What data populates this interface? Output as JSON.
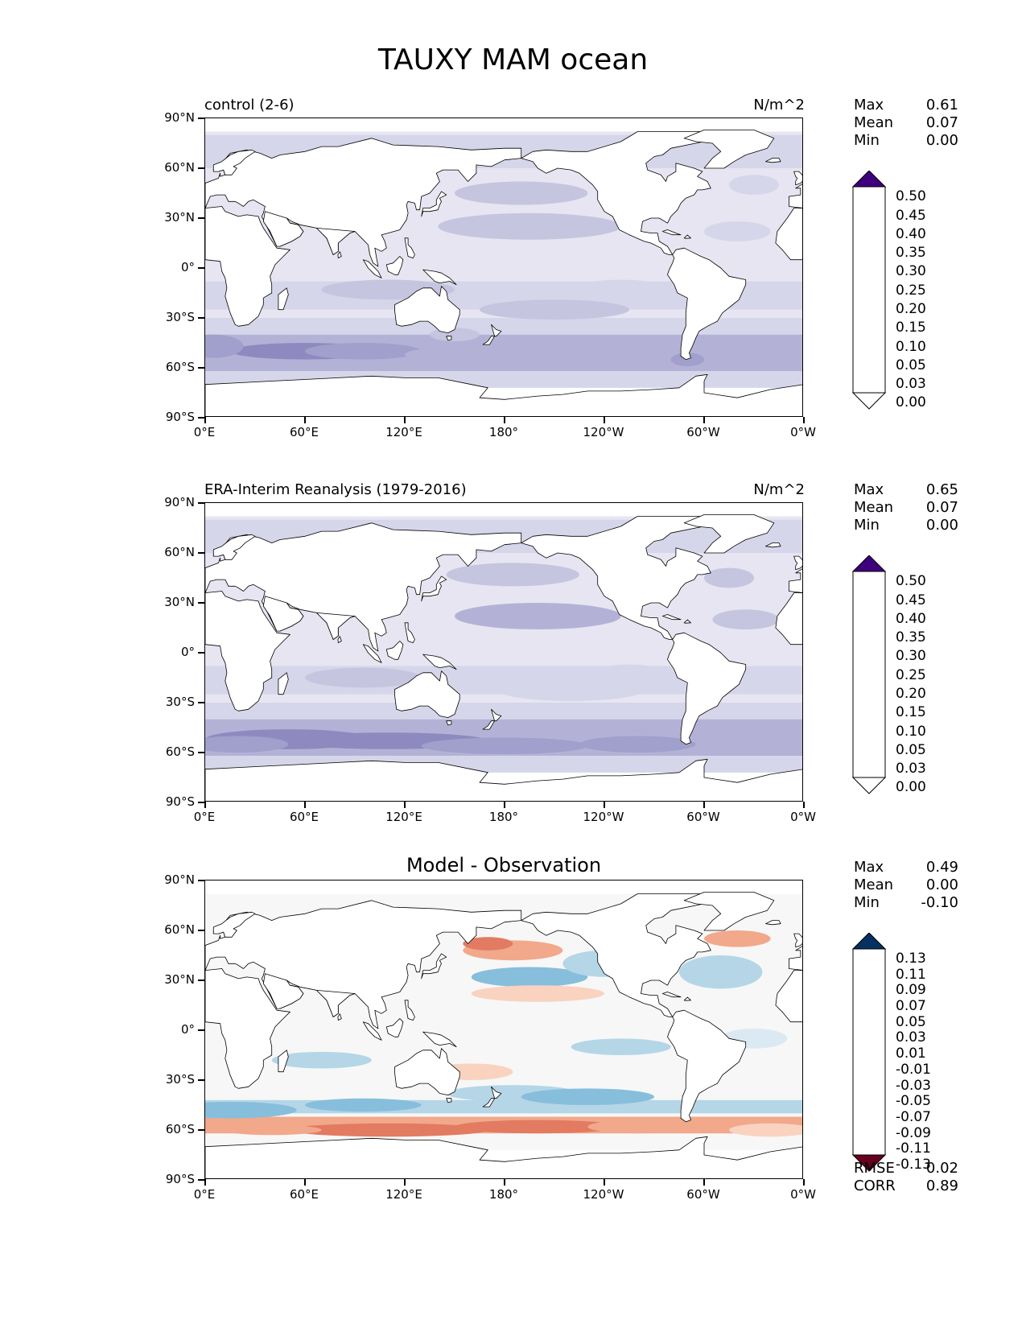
{
  "title": "TAUXY MAM ocean",
  "colors": {
    "purple_scale": [
      "#ffffff",
      "#f4f3f8",
      "#e6e5f1",
      "#d6d6ea",
      "#c5c5e0",
      "#b3b2d6",
      "#a19fcb",
      "#8e89bf",
      "#7a70b1",
      "#6b5aa5",
      "#5c3f97",
      "#4e2288",
      "#3f007d"
    ],
    "diff_scale": [
      "#67001f",
      "#8e0c25",
      "#b8202f",
      "#d1473e",
      "#e27b62",
      "#f2a88a",
      "#f9d3c0",
      "#f7f7f7",
      "#dbeaf2",
      "#b4d6e7",
      "#87bedc",
      "#5199c7",
      "#2f79b5",
      "#185fa2",
      "#053061"
    ],
    "land": "#ffffff",
    "coast": "#000000"
  },
  "axes": {
    "yticks": [
      "90°N",
      "60°N",
      "30°N",
      "0°",
      "30°S",
      "60°S",
      "90°S"
    ],
    "xticks": [
      "0°E",
      "60°E",
      "120°E",
      "180°",
      "120°W",
      "60°W",
      "0°W"
    ]
  },
  "panels": [
    {
      "id": "control",
      "title_left": "control (2-6)",
      "title_right": "N/m^2",
      "stats": [
        {
          "label": "Max",
          "value": "0.61"
        },
        {
          "label": "Mean",
          "value": "0.07"
        },
        {
          "label": "Min",
          "value": "0.00"
        }
      ],
      "colorbar_labels": [
        "0.50",
        "0.45",
        "0.40",
        "0.35",
        "0.30",
        "0.25",
        "0.20",
        "0.15",
        "0.10",
        "0.05",
        "0.03",
        "0.00"
      ]
    },
    {
      "id": "era",
      "title_left": "ERA-Interim Reanalysis (1979-2016)",
      "title_right": "N/m^2",
      "stats": [
        {
          "label": "Max",
          "value": "0.65"
        },
        {
          "label": "Mean",
          "value": "0.07"
        },
        {
          "label": "Min",
          "value": "0.00"
        }
      ],
      "colorbar_labels": [
        "0.50",
        "0.45",
        "0.40",
        "0.35",
        "0.30",
        "0.25",
        "0.20",
        "0.15",
        "0.10",
        "0.05",
        "0.03",
        "0.00"
      ]
    },
    {
      "id": "diff",
      "title_center": "Model - Observation",
      "stats": [
        {
          "label": "Max",
          "value": "0.49"
        },
        {
          "label": "Mean",
          "value": "0.00"
        },
        {
          "label": "Min",
          "value": "-0.10"
        }
      ],
      "colorbar_labels": [
        "0.13",
        "0.11",
        "0.09",
        "0.07",
        "0.05",
        "0.03",
        "0.01",
        "-0.01",
        "-0.03",
        "-0.05",
        "-0.07",
        "-0.09",
        "-0.11",
        "-0.13"
      ],
      "footer": [
        {
          "label": "RMSE",
          "value": "0.02"
        },
        {
          "label": "CORR",
          "value": "0.89"
        }
      ]
    }
  ],
  "chart_data": [
    {
      "type": "heatmap",
      "title": "control (2-6)",
      "units": "N/m^2",
      "x_range": [
        0,
        360
      ],
      "y_range": [
        -90,
        90
      ],
      "levels": [
        0.0,
        0.03,
        0.05,
        0.1,
        0.15,
        0.2,
        0.25,
        0.3,
        0.35,
        0.4,
        0.45,
        0.5
      ],
      "max": 0.61,
      "mean": 0.07,
      "min": 0.0
    },
    {
      "type": "heatmap",
      "title": "ERA-Interim Reanalysis (1979-2016)",
      "units": "N/m^2",
      "x_range": [
        0,
        360
      ],
      "y_range": [
        -90,
        90
      ],
      "levels": [
        0.0,
        0.03,
        0.05,
        0.1,
        0.15,
        0.2,
        0.25,
        0.3,
        0.35,
        0.4,
        0.45,
        0.5
      ],
      "max": 0.65,
      "mean": 0.07,
      "min": 0.0
    },
    {
      "type": "heatmap",
      "title": "Model - Observation",
      "x_range": [
        0,
        360
      ],
      "y_range": [
        -90,
        90
      ],
      "levels": [
        -0.13,
        -0.11,
        -0.09,
        -0.07,
        -0.05,
        -0.03,
        -0.01,
        0.01,
        0.03,
        0.05,
        0.07,
        0.09,
        0.11,
        0.13
      ],
      "max": 0.49,
      "mean": 0.0,
      "min": -0.1,
      "rmse": 0.02,
      "corr": 0.89
    }
  ]
}
